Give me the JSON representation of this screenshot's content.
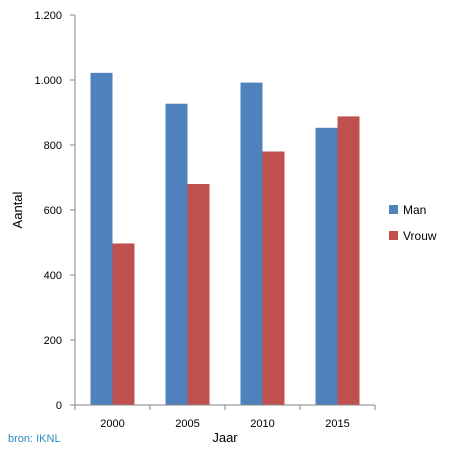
{
  "chart_data": {
    "type": "bar",
    "categories": [
      "2000",
      "2005",
      "2010",
      "2015"
    ],
    "series": [
      {
        "name": "Man",
        "values": [
          1022,
          927,
          992,
          853
        ],
        "color": "#4F81BD"
      },
      {
        "name": "Vrouw",
        "values": [
          497,
          680,
          780,
          888
        ],
        "color": "#C0504D"
      }
    ],
    "xlabel": "Jaar",
    "ylabel": "Aantal",
    "ylim": [
      0,
      1200
    ],
    "yticks": [
      0,
      200,
      400,
      600,
      800,
      1000,
      1200
    ],
    "ytick_labels": [
      "0",
      "200",
      "400",
      "600",
      "800",
      "1.000",
      "1.200"
    ],
    "legend_position": "right",
    "grid": false
  },
  "source_text": "bron: IKNL"
}
